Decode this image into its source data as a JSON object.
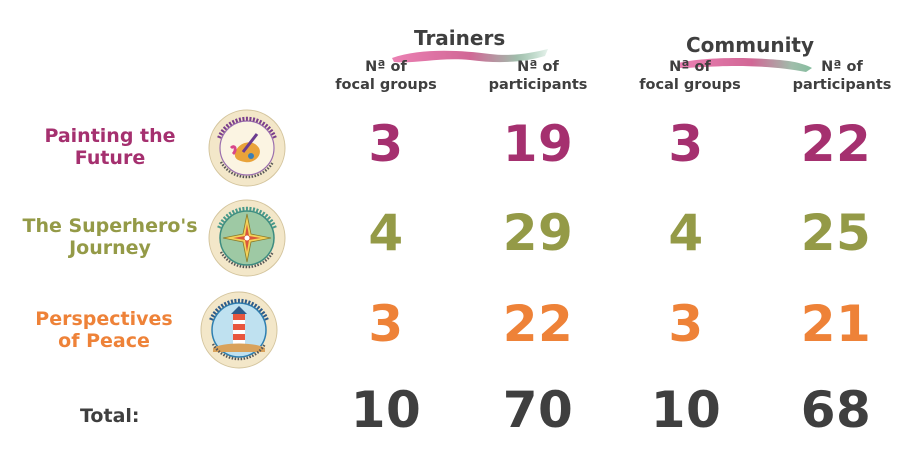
{
  "header": {
    "groups": [
      {
        "title": "Trainers"
      },
      {
        "title": "Community"
      }
    ],
    "columns": [
      {
        "line1": "Nª of",
        "line2": "focal groups"
      },
      {
        "line1": "Nª of",
        "line2": "participants"
      },
      {
        "line1": "Nª of",
        "line2": "focal groups"
      },
      {
        "line1": "Nª of",
        "line2": "participants"
      }
    ]
  },
  "rows": [
    {
      "label_line1": "Painting the",
      "label_line2": "Future",
      "color": "#a5306f",
      "logo_icon": "pintando-el-futuro-logo-icon",
      "logo_text": "PINTANDO EL FUTURO · UN PROYECTO DE UNITAR Y CIUDAD DON BOSCO",
      "values": [
        "3",
        "19",
        "3",
        "22"
      ]
    },
    {
      "label_line1": "The Superhero's",
      "label_line2": "Journey",
      "color": "#949a47",
      "logo_icon": "viaje-de-heroes-logo-icon",
      "logo_text": "VIAJE DE HÉROES Y HEROÍNAS · UN PROYECTO DE UNITAR Y CIUDAD DON BOSCO",
      "values": [
        "4",
        "29",
        "4",
        "25"
      ]
    },
    {
      "label_line1": "Perspectives",
      "label_line2": "of Peace",
      "color": "#ee8238",
      "logo_icon": "perspectivas-de-paz-logo-icon",
      "logo_text": "PERSPECTIVAS DE PAZ · UN PROYECTO DE UNITAR Y CIUDAD DON BOSCO",
      "values": [
        "3",
        "22",
        "3",
        "21"
      ]
    }
  ],
  "total": {
    "label": "Total:",
    "color": "#3f3f3f",
    "values": [
      "10",
      "70",
      "10",
      "68"
    ]
  }
}
